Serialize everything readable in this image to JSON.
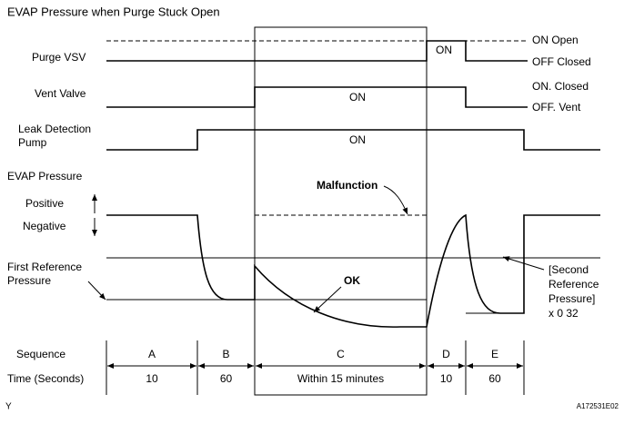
{
  "title": "EVAP Pressure when Purge Stuck Open",
  "row_labels": {
    "purge_vsv": "Purge VSV",
    "vent_valve": "Vent Valve",
    "leak_detection_pump": [
      "Leak Detection",
      "Pump"
    ],
    "evap_pressure": "EVAP Pressure",
    "positive": "Positive",
    "negative": "Negative",
    "first_reference_pressure": [
      "First Reference",
      "Pressure"
    ],
    "sequence": "Sequence",
    "time": "Time (Seconds)"
  },
  "state_labels": {
    "purge_on": "ON  Open",
    "purge_off": "OFF  Closed",
    "vent_on": "ON. Closed",
    "vent_off": "OFF. Vent",
    "second_reference": [
      "[Second",
      "Reference",
      "Pressure]",
      "x 0 32"
    ]
  },
  "inner_labels": {
    "purge_on": "ON",
    "vent_on": "ON",
    "pump_on": "ON",
    "malfunction": "Malfunction",
    "ok": "OK"
  },
  "sequence": [
    {
      "name": "A",
      "time": "10"
    },
    {
      "name": "B",
      "time": "60"
    },
    {
      "name": "C",
      "time": "Within 15 minutes"
    },
    {
      "name": "D",
      "time": "10"
    },
    {
      "name": "E",
      "time": "60"
    }
  ],
  "footer": {
    "left": "Y",
    "right": "A172531E02"
  }
}
